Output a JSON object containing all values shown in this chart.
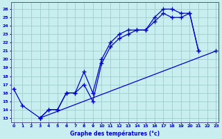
{
  "title": "Graphe des températures (°c)",
  "bg_color": "#c8eef0",
  "line_color": "#0000cc",
  "grid_color": "#a0cccc",
  "x_ticks": [
    0,
    1,
    2,
    3,
    4,
    5,
    6,
    7,
    8,
    9,
    10,
    11,
    12,
    13,
    14,
    15,
    16,
    17,
    18,
    19,
    20,
    21,
    22,
    23
  ],
  "y_ticks": [
    13,
    14,
    15,
    16,
    17,
    18,
    19,
    20,
    21,
    22,
    23,
    24,
    25,
    26
  ],
  "ylim": [
    12.5,
    26.8
  ],
  "xlim": [
    -0.3,
    23.3
  ],
  "series1_x": [
    0,
    1,
    3,
    4,
    5,
    6,
    7,
    8,
    9,
    10,
    11,
    12,
    13,
    14,
    15,
    16,
    17,
    18,
    19,
    20,
    21
  ],
  "series1_y": [
    16.5,
    14.5,
    13.0,
    14.0,
    14.0,
    16.0,
    16.0,
    18.5,
    16.0,
    20.0,
    22.0,
    23.0,
    23.5,
    23.5,
    23.5,
    25.0,
    26.0,
    26.0,
    25.5,
    25.5,
    21.0
  ],
  "series2_x": [
    3,
    4,
    5,
    6,
    7,
    8,
    9,
    10,
    11,
    12,
    13,
    14,
    15,
    16,
    17,
    18,
    19,
    20,
    21
  ],
  "series2_y": [
    13.0,
    14.0,
    14.0,
    16.0,
    16.0,
    17.0,
    15.0,
    19.5,
    21.5,
    22.5,
    23.0,
    23.5,
    23.5,
    24.5,
    25.5,
    25.0,
    25.0,
    25.5,
    21.0
  ],
  "series3_x": [
    3,
    23
  ],
  "series3_y": [
    13.0,
    21.0
  ]
}
